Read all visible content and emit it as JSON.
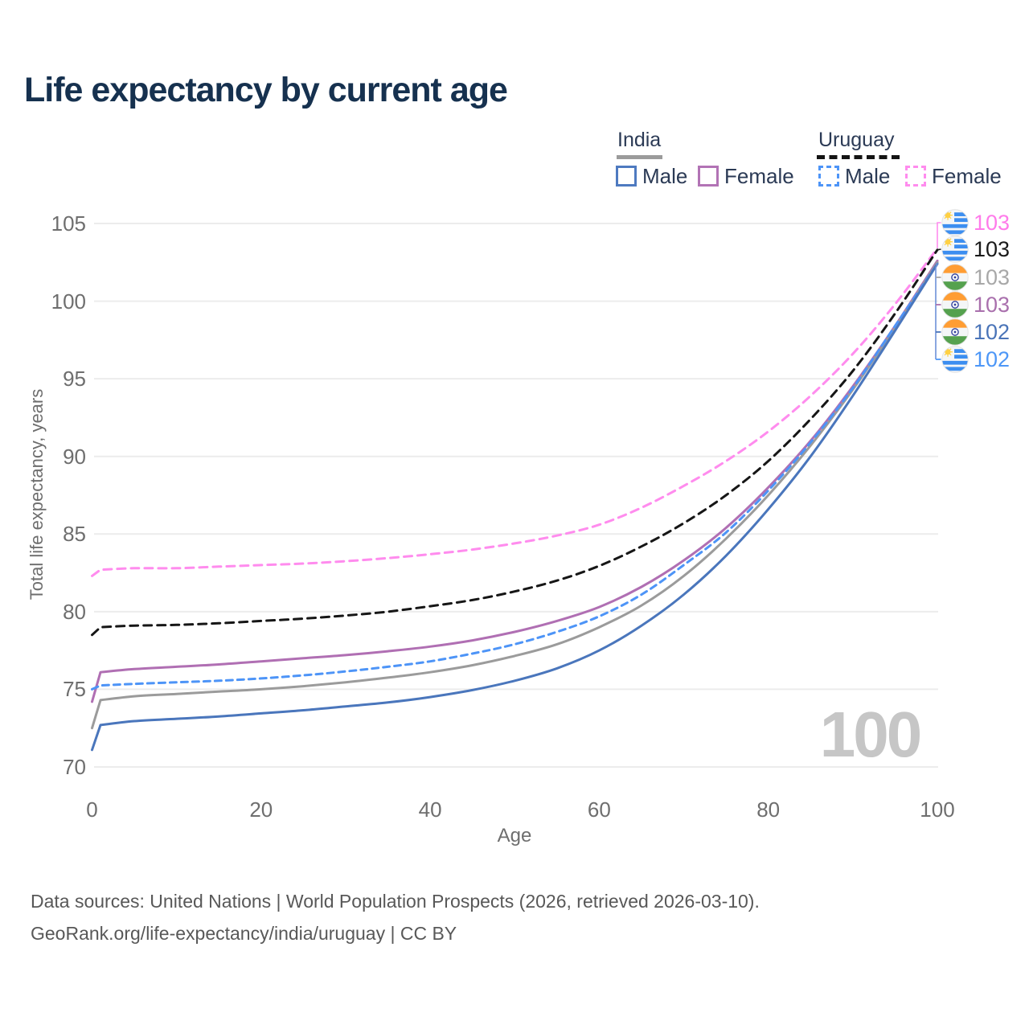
{
  "title": "Life expectancy by current age",
  "legend": {
    "groups": [
      {
        "label": "India",
        "line_style": "solid",
        "items": [
          {
            "label": "Male",
            "color": "#4e7ac0"
          },
          {
            "label": "Female",
            "color": "#b273b5"
          }
        ]
      },
      {
        "label": "Uruguay",
        "line_style": "dashed",
        "items": [
          {
            "label": "Male",
            "color": "#4d94f7"
          },
          {
            "label": "Female",
            "color": "#ff8cee"
          }
        ]
      }
    ]
  },
  "watermark_age": "100",
  "footer": {
    "line1": "Data sources: United Nations | World Population Prospects (2026, retrieved 2026-03-10).",
    "line2": "GeoRank.org/life-expectancy/india/uruguay | CC BY"
  },
  "chart_data": {
    "type": "line",
    "title": "Life expectancy by current age",
    "xlabel": "Age",
    "ylabel": "Total life expectancy, years",
    "xlim": [
      0,
      100
    ],
    "ylim": [
      70,
      105
    ],
    "xticks": [
      0,
      20,
      40,
      60,
      80,
      100
    ],
    "yticks": [
      70,
      75,
      80,
      85,
      90,
      95,
      100,
      105
    ],
    "grid": "horizontal-only",
    "legend_position": "top-right",
    "x": [
      0,
      1,
      5,
      10,
      15,
      20,
      25,
      30,
      35,
      40,
      45,
      50,
      55,
      60,
      65,
      70,
      75,
      80,
      85,
      90,
      95,
      100
    ],
    "series": [
      {
        "name": "Uruguay Female",
        "country": "Uruguay",
        "sex": "Female",
        "color": "#ff8cee",
        "dash": [
          10,
          7
        ],
        "values": [
          82.3,
          82.7,
          82.8,
          82.8,
          82.9,
          83.0,
          83.1,
          83.25,
          83.45,
          83.7,
          84.0,
          84.4,
          84.9,
          85.6,
          86.7,
          88.1,
          89.7,
          91.6,
          93.9,
          96.6,
          99.8,
          103.4
        ],
        "end_value": 103
      },
      {
        "name": "Uruguay",
        "country": "Uruguay",
        "sex": "All",
        "color": "#161616",
        "dash": [
          10,
          7
        ],
        "values": [
          78.5,
          79.0,
          79.1,
          79.15,
          79.25,
          79.4,
          79.55,
          79.75,
          80.0,
          80.35,
          80.75,
          81.3,
          82.0,
          82.95,
          84.2,
          85.7,
          87.5,
          89.7,
          92.4,
          95.5,
          99.2,
          103.3
        ],
        "end_value": 103
      },
      {
        "name": "India Female",
        "country": "India",
        "sex": "Female",
        "color": "#b06fb3",
        "dash": null,
        "values": [
          74.2,
          76.1,
          76.3,
          76.45,
          76.6,
          76.8,
          77.0,
          77.2,
          77.45,
          77.75,
          78.15,
          78.7,
          79.4,
          80.3,
          81.6,
          83.3,
          85.4,
          88.0,
          91.0,
          94.5,
          98.4,
          102.6
        ],
        "end_value": 103
      },
      {
        "name": "India",
        "country": "India",
        "sex": "All",
        "color": "#9b9b9b",
        "dash": null,
        "values": [
          72.5,
          74.3,
          74.55,
          74.7,
          74.85,
          75.0,
          75.2,
          75.45,
          75.75,
          76.1,
          76.55,
          77.15,
          77.9,
          79.0,
          80.4,
          82.3,
          84.7,
          87.5,
          90.7,
          94.3,
          98.3,
          102.5
        ],
        "end_value": 103
      },
      {
        "name": "Uruguay Male",
        "country": "Uruguay",
        "sex": "Male",
        "color": "#4d94f7",
        "dash": [
          8,
          6
        ],
        "values": [
          75.0,
          75.25,
          75.35,
          75.45,
          75.55,
          75.7,
          75.9,
          76.15,
          76.45,
          76.8,
          77.3,
          77.9,
          78.7,
          79.7,
          81.1,
          83.0,
          85.1,
          87.8,
          90.9,
          94.4,
          98.4,
          102.4
        ],
        "end_value": 102
      },
      {
        "name": "India Male",
        "country": "India",
        "sex": "Male",
        "color": "#4a76bc",
        "dash": null,
        "values": [
          71.1,
          72.7,
          72.95,
          73.1,
          73.25,
          73.45,
          73.65,
          73.9,
          74.15,
          74.5,
          74.95,
          75.55,
          76.35,
          77.5,
          79.1,
          81.1,
          83.6,
          86.6,
          90.0,
          93.9,
          98.1,
          102.4
        ],
        "end_value": 102
      }
    ],
    "end_labels": [
      {
        "value": "103",
        "country": "Uruguay",
        "series": "Uruguay Female",
        "color": "#ff7bea"
      },
      {
        "value": "103",
        "country": "Uruguay",
        "series": "Uruguay",
        "color": "#1a1a1a"
      },
      {
        "value": "103",
        "country": "India",
        "series": "India",
        "color": "#a8a8a8"
      },
      {
        "value": "103",
        "country": "India",
        "series": "India Female",
        "color": "#a970ad"
      },
      {
        "value": "102",
        "country": "India",
        "series": "India Male",
        "color": "#4a74b8"
      },
      {
        "value": "102",
        "country": "Uruguay",
        "series": "Uruguay Male",
        "color": "#4d97f7"
      }
    ]
  }
}
